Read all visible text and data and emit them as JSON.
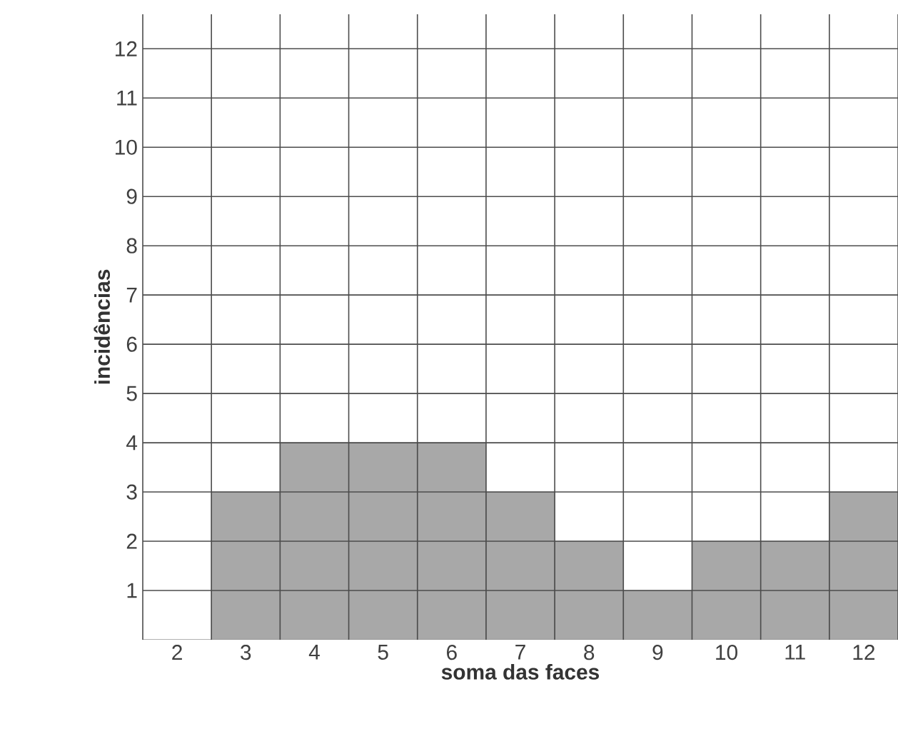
{
  "chart_data": {
    "type": "bar",
    "xlabel": "soma das faces",
    "ylabel": "incidências",
    "categories": [
      "2",
      "3",
      "4",
      "5",
      "6",
      "7",
      "8",
      "9",
      "10",
      "11",
      "12"
    ],
    "values": [
      0,
      3,
      4,
      4,
      4,
      3,
      2,
      1,
      2,
      2,
      3
    ],
    "color": "#a8a8a8",
    "ylim": [
      0,
      12.7
    ],
    "yticks": [
      1,
      2,
      3,
      4,
      5,
      6,
      7,
      8,
      9,
      10,
      11,
      12
    ],
    "grid": true
  }
}
